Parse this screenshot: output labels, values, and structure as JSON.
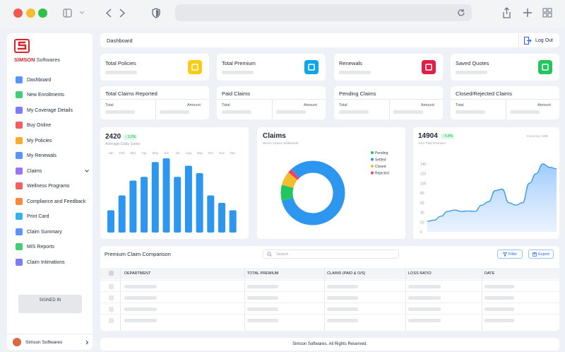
{
  "colors": {
    "accent": "#2d9cf0",
    "red": "#f05a55",
    "yellow": "#f5bd2e",
    "green": "#2fc24a"
  },
  "browser": {
    "icons": [
      "sidebar-icon",
      "back-icon",
      "forward-icon",
      "shield-icon",
      "reload-icon",
      "share-icon",
      "new-tab-icon",
      "tabs-grid-icon"
    ]
  },
  "brand": {
    "name": "SIMSON",
    "suffix": " Softwares"
  },
  "header": {
    "title": "Dashboard",
    "logout": "Log Out"
  },
  "nav": [
    {
      "label": "Dashboard",
      "icon": "dashboard-icon",
      "color": "#3b82f6"
    },
    {
      "label": "New Enrollments",
      "icon": "enroll-icon",
      "color": "#22c55e"
    },
    {
      "label": "My Coverage Details",
      "icon": "coverage-icon",
      "color": "#6366f1"
    },
    {
      "label": "Buy Online",
      "icon": "cart-icon",
      "color": "#ef4444"
    },
    {
      "label": "My Policies",
      "icon": "policy-icon",
      "color": "#f59e0b"
    },
    {
      "label": "My Renewals",
      "icon": "renewal-icon",
      "color": "#3b82f6"
    },
    {
      "label": "Claims",
      "icon": "claims-icon",
      "color": "#8b5cf6"
    },
    {
      "label": "Wellness Programs",
      "icon": "wellness-icon",
      "color": "#ef4444"
    },
    {
      "label": "Compliance and Feedback",
      "icon": "feedback-icon",
      "color": "#f97316"
    },
    {
      "label": "Print Card",
      "icon": "print-icon",
      "color": "#0ea5e9"
    },
    {
      "label": "Claim Summary",
      "icon": "summary-icon",
      "color": "#3b82f6"
    },
    {
      "label": "MIS Reports",
      "icon": "report-icon",
      "color": "#22c55e"
    },
    {
      "label": "Claim Intimations",
      "icon": "intimation-icon",
      "color": "#6366f1"
    }
  ],
  "signed": "SIGNED IN",
  "user": {
    "name": "Simson Softwares"
  },
  "stats": [
    {
      "label": "Total Policies",
      "icon": "bar-chart-icon",
      "color": "#facc15"
    },
    {
      "label": "Total Premium",
      "icon": "briefcase-icon",
      "color": "#0ea5e9"
    },
    {
      "label": "Renewals",
      "icon": "layers-icon",
      "color": "#e11d48"
    },
    {
      "label": "Saved Quotes",
      "icon": "home-icon",
      "color": "#22c55e"
    }
  ],
  "claims_cards": [
    {
      "label": "Total Claims Reported",
      "total": "Total",
      "amount": "Amount"
    },
    {
      "label": "Paid Claims",
      "total": "Total",
      "amount": "Amount"
    },
    {
      "label": "Pending Claims",
      "total": "Total",
      "amount": "Amount"
    },
    {
      "label": "Closed/Rejected Claims",
      "total": "Total",
      "amount": "Amount"
    }
  ],
  "sales": {
    "value": "2420",
    "badge": "↑ 3.2%",
    "sub": "Average Daily Sales"
  },
  "claims_chart": {
    "title": "Claims",
    "sub": "99.8% Claims Settlement"
  },
  "premium": {
    "value": "14904",
    "badge": "↑ 5.8%",
    "sub": "Your Total Premium",
    "currency": "Currency: USD"
  },
  "chart_data": [
    {
      "type": "bar",
      "categories": [
        "Jan",
        "Feb",
        "Mar",
        "Apr",
        "May",
        "Jun",
        "Jul",
        "Aug",
        "Sep",
        "Oct",
        "Nov",
        "Dec"
      ],
      "values": [
        30,
        50,
        70,
        75,
        95,
        100,
        75,
        90,
        80,
        50,
        40,
        30
      ],
      "ylim": [
        0,
        100
      ],
      "color": "#2d96ee"
    },
    {
      "type": "pie",
      "title": "Claims",
      "labels": [
        "Pending",
        "Settled",
        "Closed",
        "Rejected"
      ],
      "values": [
        8,
        83,
        7,
        2
      ],
      "colors": [
        "#22c55e",
        "#2d96ee",
        "#f5bd2e",
        "#f43f5e"
      ]
    },
    {
      "type": "area",
      "y_ticks": [
        "140",
        "120",
        "100",
        "80",
        "60",
        "40",
        "20",
        "0"
      ],
      "ylim": [
        0,
        150
      ],
      "values": [
        22,
        24,
        32,
        42,
        45,
        42,
        43,
        42,
        55,
        62,
        85,
        88,
        60,
        55,
        60,
        100,
        120,
        140,
        133,
        130
      ],
      "color": "#2d96ee"
    }
  ],
  "table": {
    "title": "Premium Claim Comparison",
    "search": "Search",
    "filter": "Filter",
    "export": "Export",
    "columns": [
      "DEPARTMENT",
      "TOTAL PREMIUM",
      "CLAIMS (PAID & O/S)",
      "LOSS RATIO",
      "DATE"
    ]
  },
  "footer": "Simson Softwares. All Rights Reserved."
}
